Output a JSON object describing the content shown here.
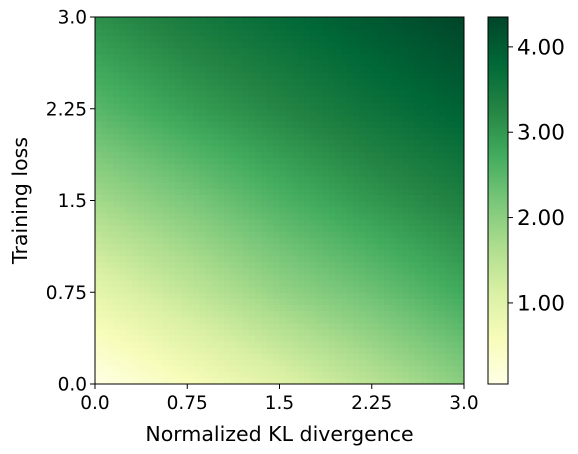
{
  "chart_data": {
    "type": "heatmap",
    "title": "",
    "xlabel": "Normalized KL divergence",
    "ylabel": "Training loss",
    "xlim": [
      0,
      3
    ],
    "ylim": [
      0,
      3
    ],
    "x_ticks": [
      0,
      0.75,
      1.5,
      2.25,
      3
    ],
    "x_tick_labels": [
      "0.0",
      "0.75",
      "1.5",
      "2.25",
      "3.0"
    ],
    "y_ticks": [
      0,
      0.75,
      1.5,
      2.25,
      3
    ],
    "y_tick_labels": [
      "0.0",
      "0.75",
      "1.5",
      "2.25",
      "3.0"
    ],
    "grid": false,
    "colormap": "YlGn",
    "colormap_stops": [
      "#ffffe5",
      "#f7fcb9",
      "#d9f0a3",
      "#addd8e",
      "#78c679",
      "#41ab5d",
      "#238443",
      "#006837",
      "#004529"
    ],
    "value_range": [
      0.05,
      4.35
    ],
    "value_samples": {
      "x": [
        0,
        0.75,
        1.5,
        2.25,
        3
      ],
      "y": [
        0,
        0.75,
        1.5,
        2.25,
        3
      ],
      "z": [
        [
          0.05,
          0.55,
          1.0,
          1.5,
          2.0
        ],
        [
          0.9,
          1.4,
          1.9,
          2.3,
          2.75
        ],
        [
          1.75,
          2.15,
          2.6,
          3.0,
          3.35
        ],
        [
          2.5,
          2.9,
          3.25,
          3.6,
          3.9
        ],
        [
          3.1,
          3.45,
          3.75,
          4.05,
          4.35
        ]
      ]
    },
    "colorbar": {
      "ticks": [
        1,
        2,
        3,
        4
      ],
      "tick_labels": [
        "1.00",
        "2.00",
        "3.00",
        "4.00"
      ]
    }
  }
}
